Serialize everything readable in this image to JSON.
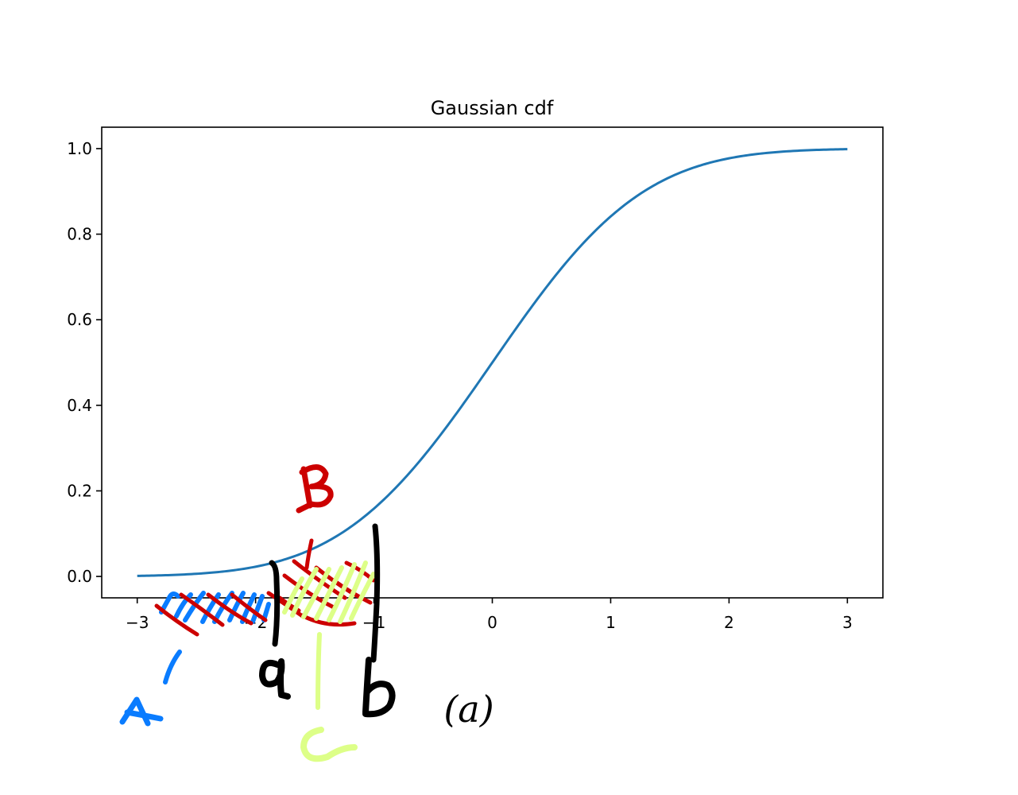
{
  "chart_data": {
    "type": "line",
    "title": "Gaussian cdf",
    "xlabel": "",
    "ylabel": "",
    "xlim": [
      -3.3,
      3.3
    ],
    "ylim": [
      -0.05,
      1.05
    ],
    "xticks": [
      -3,
      -2,
      -1,
      0,
      1,
      2,
      3
    ],
    "xtick_labels": [
      "−3",
      "−2",
      "−1",
      "0",
      "1",
      "2",
      "3"
    ],
    "yticks": [
      0.0,
      0.2,
      0.4,
      0.6,
      0.8,
      1.0
    ],
    "ytick_labels": [
      "0.0",
      "0.2",
      "0.4",
      "0.6",
      "0.8",
      "1.0"
    ],
    "grid": false,
    "series": [
      {
        "color": "#1f77b4",
        "function": "standard normal CDF",
        "x": [
          -3.0,
          -2.5,
          -2.0,
          -1.5,
          -1.0,
          -0.5,
          0.0,
          0.5,
          1.0,
          1.5,
          2.0,
          2.5,
          3.0
        ],
        "y": [
          0.0013,
          0.0062,
          0.0228,
          0.0668,
          0.1587,
          0.3085,
          0.5,
          0.6915,
          0.8413,
          0.9332,
          0.9772,
          0.9938,
          0.9987
        ]
      }
    ]
  },
  "annotations": {
    "a_label": "a",
    "b_label": "b",
    "region_a_label": "A",
    "region_b_label": "B",
    "region_c_label": "C",
    "caption": "(a)",
    "colors": {
      "region_a": "#0a7cff",
      "region_b": "#cc0000",
      "region_c": "#ddff88",
      "brackets": "#000000"
    }
  }
}
